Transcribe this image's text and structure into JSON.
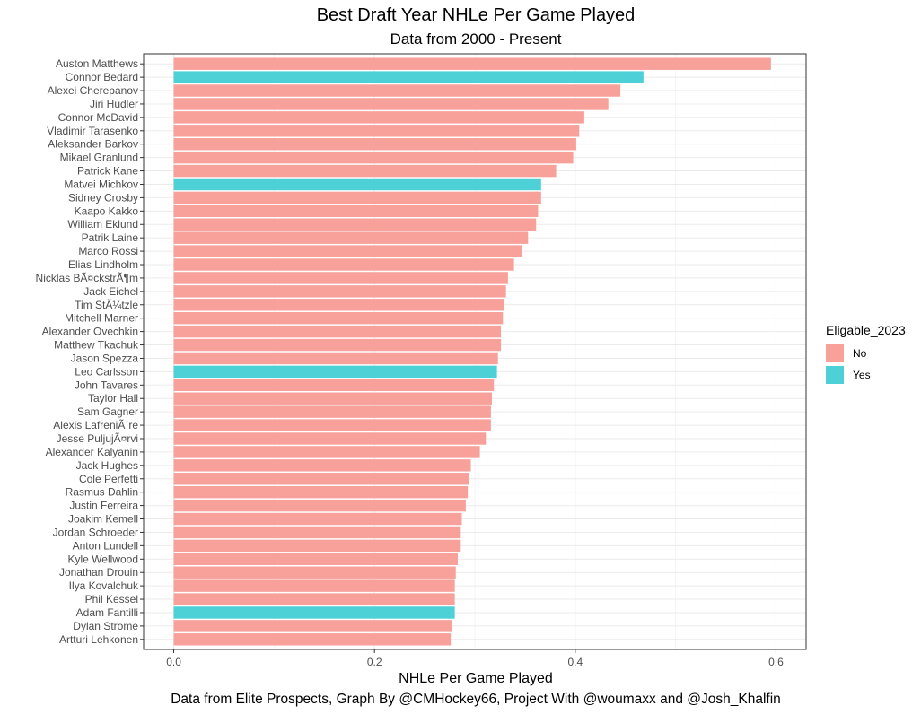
{
  "chart_data": {
    "type": "bar",
    "orientation": "horizontal",
    "title": "Best Draft Year NHLe Per Game Played",
    "subtitle": "Data from 2000 - Present",
    "xlabel": "NHLe Per Game Played",
    "ylabel": "",
    "caption": "Data from Elite Prospects, Graph By @CMHockey66, Project With @woumaxx and @Josh_Khalfin",
    "xlim": [
      -0.03,
      0.63
    ],
    "xticks": [
      0.0,
      0.2,
      0.4,
      0.6
    ],
    "xtick_labels": [
      "0.0",
      "0.2",
      "0.4",
      "0.6"
    ],
    "grid": true,
    "legend": {
      "title": "Eligable_2023",
      "placement": "right",
      "entries": [
        {
          "label": "No",
          "color": "#F8A09A"
        },
        {
          "label": "Yes",
          "color": "#4DD0D6"
        }
      ]
    },
    "categories": [
      "Auston Matthews",
      "Connor Bedard",
      "Alexei Cherepanov",
      "Jiri Hudler",
      "Connor McDavid",
      "Vladimir Tarasenko",
      "Aleksander Barkov",
      "Mikael Granlund",
      "Patrick Kane",
      "Matvei Michkov",
      "Sidney Crosby",
      "Kaapo Kakko",
      "William Eklund",
      "Patrik Laine",
      "Marco Rossi",
      "Elias Lindholm",
      "Nicklas BÃ¤ckstrÃ¶m",
      "Jack Eichel",
      "Tim StÃ¼tzle",
      "Mitchell Marner",
      "Alexander Ovechkin",
      "Matthew Tkachuk",
      "Jason Spezza",
      "Leo Carlsson",
      "John Tavares",
      "Taylor Hall",
      "Sam Gagner",
      "Alexis LafreniÃ¨re",
      "Jesse PuljujÃ¤rvi",
      "Alexander Kalyanin",
      "Jack Hughes",
      "Cole Perfetti",
      "Rasmus Dahlin",
      "Justin Ferreira",
      "Joakim Kemell",
      "Jordan Schroeder",
      "Anton Lundell",
      "Kyle Wellwood",
      "Jonathan Drouin",
      "Ilya Kovalchuk",
      "Phil Kessel",
      "Adam Fantilli",
      "Dylan Strome",
      "Artturi Lehkonen"
    ],
    "values": [
      0.595,
      0.468,
      0.445,
      0.433,
      0.409,
      0.404,
      0.401,
      0.398,
      0.381,
      0.366,
      0.366,
      0.363,
      0.361,
      0.353,
      0.347,
      0.339,
      0.333,
      0.331,
      0.329,
      0.328,
      0.326,
      0.326,
      0.323,
      0.322,
      0.319,
      0.317,
      0.316,
      0.316,
      0.311,
      0.305,
      0.296,
      0.294,
      0.293,
      0.291,
      0.287,
      0.286,
      0.286,
      0.283,
      0.281,
      0.28,
      0.28,
      0.28,
      0.277,
      0.276
    ],
    "eligible": [
      "No",
      "Yes",
      "No",
      "No",
      "No",
      "No",
      "No",
      "No",
      "No",
      "Yes",
      "No",
      "No",
      "No",
      "No",
      "No",
      "No",
      "No",
      "No",
      "No",
      "No",
      "No",
      "No",
      "No",
      "Yes",
      "No",
      "No",
      "No",
      "No",
      "No",
      "No",
      "No",
      "No",
      "No",
      "No",
      "No",
      "No",
      "No",
      "No",
      "No",
      "No",
      "No",
      "Yes",
      "No",
      "No"
    ]
  }
}
